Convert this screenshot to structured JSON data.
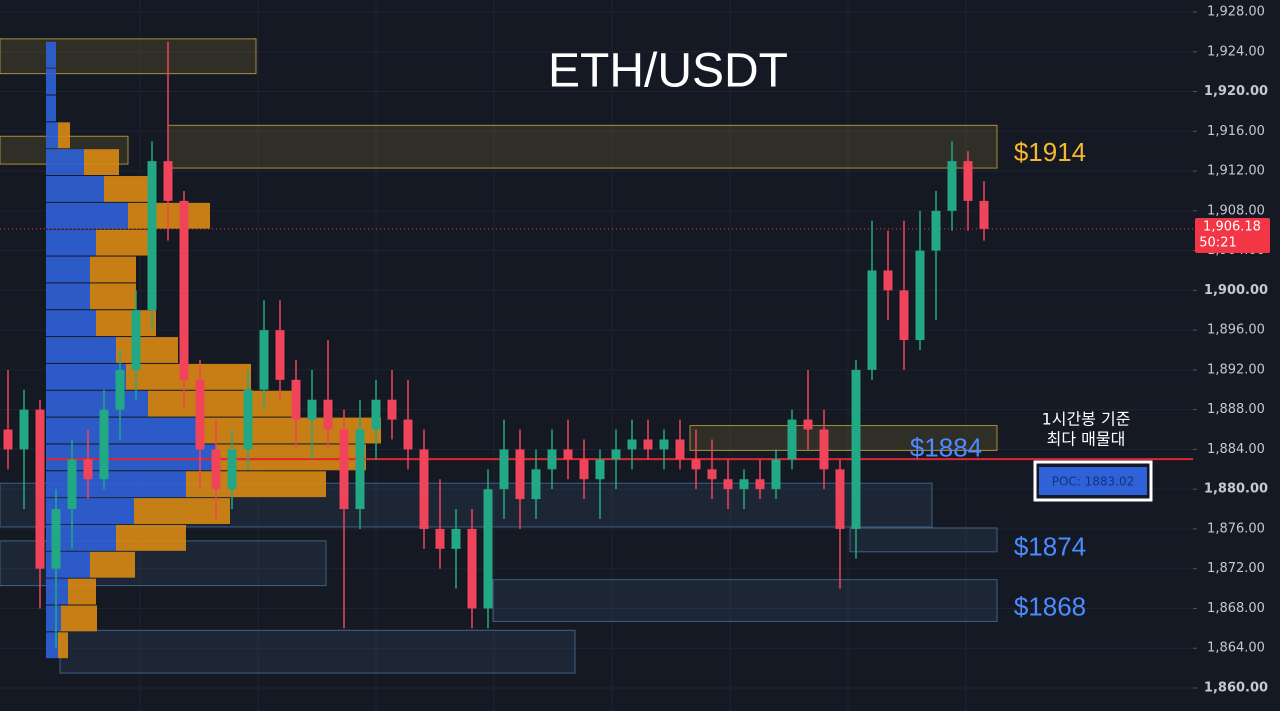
{
  "chart_data": {
    "type": "candlestick",
    "title": "ETH/USDT",
    "ylim": [
      1860,
      1928
    ],
    "yticks": [
      {
        "value": 1860,
        "label": "1,860.00"
      },
      {
        "value": 1864,
        "label": "1,864.00"
      },
      {
        "value": 1868,
        "label": "1,868.00"
      },
      {
        "value": 1872,
        "label": "1,872.00"
      },
      {
        "value": 1876,
        "label": "1,876.00"
      },
      {
        "value": 1880,
        "label": "1,880.00"
      },
      {
        "value": 1884,
        "label": "1,884.00"
      },
      {
        "value": 1888,
        "label": "1,888.00"
      },
      {
        "value": 1892,
        "label": "1,892.00"
      },
      {
        "value": 1896,
        "label": "1,896.00"
      },
      {
        "value": 1900,
        "label": "1,900.00"
      },
      {
        "value": 1904,
        "label": "1,904.00"
      },
      {
        "value": 1908,
        "label": "1,908.00"
      },
      {
        "value": 1912,
        "label": "1,912.00"
      },
      {
        "value": 1916,
        "label": "1,916.00"
      },
      {
        "value": 1920,
        "label": "1,920.00"
      },
      {
        "value": 1924,
        "label": "1,924.00"
      },
      {
        "value": 1928,
        "label": "1,928.00"
      }
    ],
    "up_color": "#22a884",
    "down_color": "#f0445a",
    "candles": [
      [
        1886,
        1892,
        1882,
        1884
      ],
      [
        1884,
        1890,
        1878,
        1888
      ],
      [
        1888,
        1889,
        1868,
        1872
      ],
      [
        1872,
        1880,
        1864,
        1878
      ],
      [
        1878,
        1885,
        1874,
        1883
      ],
      [
        1883,
        1886,
        1879,
        1881
      ],
      [
        1881,
        1890,
        1880,
        1888
      ],
      [
        1888,
        1894,
        1885,
        1892
      ],
      [
        1892,
        1900,
        1889,
        1898
      ],
      [
        1898,
        1915,
        1896,
        1913
      ],
      [
        1913,
        1925,
        1905,
        1909
      ],
      [
        1909,
        1910,
        1888,
        1891
      ],
      [
        1891,
        1893,
        1880,
        1884
      ],
      [
        1884,
        1887,
        1877,
        1880
      ],
      [
        1880,
        1886,
        1878,
        1884
      ],
      [
        1884,
        1892,
        1882,
        1890
      ],
      [
        1890,
        1899,
        1888,
        1896
      ],
      [
        1896,
        1899,
        1889,
        1891
      ],
      [
        1891,
        1893,
        1884,
        1887
      ],
      [
        1887,
        1892,
        1883,
        1889
      ],
      [
        1889,
        1895,
        1884,
        1886
      ],
      [
        1886,
        1888,
        1866,
        1878
      ],
      [
        1878,
        1889,
        1876,
        1886
      ],
      [
        1886,
        1891,
        1883,
        1889
      ],
      [
        1889,
        1892,
        1885,
        1887
      ],
      [
        1887,
        1891,
        1882,
        1884
      ],
      [
        1884,
        1886,
        1874,
        1876
      ],
      [
        1876,
        1881,
        1872,
        1874
      ],
      [
        1874,
        1878,
        1870,
        1876
      ],
      [
        1876,
        1878,
        1866,
        1868
      ],
      [
        1868,
        1882,
        1866,
        1880
      ],
      [
        1880,
        1887,
        1877,
        1884
      ],
      [
        1884,
        1886,
        1876,
        1879
      ],
      [
        1879,
        1884,
        1877,
        1882
      ],
      [
        1882,
        1886,
        1880,
        1884
      ],
      [
        1884,
        1887,
        1881,
        1883
      ],
      [
        1883,
        1885,
        1879,
        1881
      ],
      [
        1881,
        1884,
        1877,
        1883
      ],
      [
        1883,
        1886,
        1880,
        1884
      ],
      [
        1884,
        1887,
        1882,
        1885
      ],
      [
        1885,
        1887,
        1883,
        1884
      ],
      [
        1884,
        1886,
        1882,
        1885
      ],
      [
        1885,
        1887,
        1882,
        1883
      ],
      [
        1883,
        1886,
        1880,
        1882
      ],
      [
        1882,
        1885,
        1879,
        1881
      ],
      [
        1881,
        1883,
        1878,
        1880
      ],
      [
        1880,
        1882,
        1878,
        1881
      ],
      [
        1881,
        1883,
        1879,
        1880
      ],
      [
        1880,
        1884,
        1879,
        1883
      ],
      [
        1883,
        1888,
        1882,
        1887
      ],
      [
        1887,
        1892,
        1884,
        1886
      ],
      [
        1886,
        1888,
        1880,
        1882
      ],
      [
        1882,
        1883,
        1870,
        1876
      ],
      [
        1876,
        1893,
        1873,
        1892
      ],
      [
        1892,
        1907,
        1891,
        1902
      ],
      [
        1902,
        1906,
        1897,
        1900
      ],
      [
        1900,
        1907,
        1892,
        1895
      ],
      [
        1895,
        1908,
        1894,
        1904
      ],
      [
        1904,
        1910,
        1897,
        1908
      ],
      [
        1908,
        1915,
        1906,
        1913
      ],
      [
        1913,
        1914,
        1906,
        1909
      ],
      [
        1909,
        1911,
        1905,
        1906.18
      ]
    ],
    "profile": {
      "bins": [
        1925.0,
        1922.3,
        1919.6,
        1916.9,
        1914.2,
        1911.5,
        1908.8,
        1906.1,
        1903.4,
        1900.7,
        1898.0,
        1895.3,
        1892.6,
        1889.9,
        1887.2,
        1884.5,
        1881.8,
        1879.1,
        1876.4,
        1873.7,
        1871.0,
        1868.3,
        1865.6,
        1862.9
      ],
      "buy": [
        10,
        10,
        10,
        12,
        38,
        58,
        82,
        50,
        44,
        44,
        50,
        70,
        80,
        102,
        155,
        170,
        140,
        88,
        70,
        44,
        22,
        15,
        12
      ],
      "sell": [
        0,
        0,
        0,
        12,
        35,
        52,
        82,
        52,
        46,
        46,
        60,
        62,
        125,
        148,
        180,
        150,
        140,
        96,
        70,
        45,
        28,
        36,
        10
      ],
      "buy_color": "#2f62d9",
      "sell_color": "#d98a14"
    },
    "zones": [
      {
        "high": 1925.3,
        "low": 1921.8,
        "color": "#c9a93a"
      },
      {
        "high": 1916.6,
        "low": 1912.3,
        "color": "#c9a93a"
      },
      {
        "high": 1915.5,
        "low": 1912.7,
        "color": "#c9a93a"
      },
      {
        "high": 1886.4,
        "low": 1883.9,
        "color": "#c9a93a"
      },
      {
        "high": 1880.6,
        "low": 1876.2,
        "color": "#4a6f9a"
      },
      {
        "high": 1876.1,
        "low": 1873.7,
        "color": "#4a6f9a"
      },
      {
        "high": 1874.8,
        "low": 1870.3,
        "color": "#4a6f9a"
      },
      {
        "high": 1870.9,
        "low": 1866.7,
        "color": "#4a6f9a"
      },
      {
        "high": 1865.8,
        "low": 1861.5,
        "color": "#4a6f9a"
      }
    ],
    "levels": [
      {
        "value": 1914,
        "label": "$1914",
        "color": "#f5b82e"
      },
      {
        "value": 1884,
        "label": "$1884",
        "color": "#4a8cff"
      },
      {
        "value": 1874,
        "label": "$1874",
        "color": "#4a8cff"
      },
      {
        "value": 1868,
        "label": "$1868",
        "color": "#4a8cff"
      }
    ],
    "poc": {
      "value": 1883.02,
      "label": "POC: 1883.02",
      "note": [
        "1시간봉 기준",
        "최다 매물대"
      ]
    },
    "last_price": {
      "value": 1906.18,
      "label": "1,906.18",
      "countdown": "50:21"
    }
  }
}
